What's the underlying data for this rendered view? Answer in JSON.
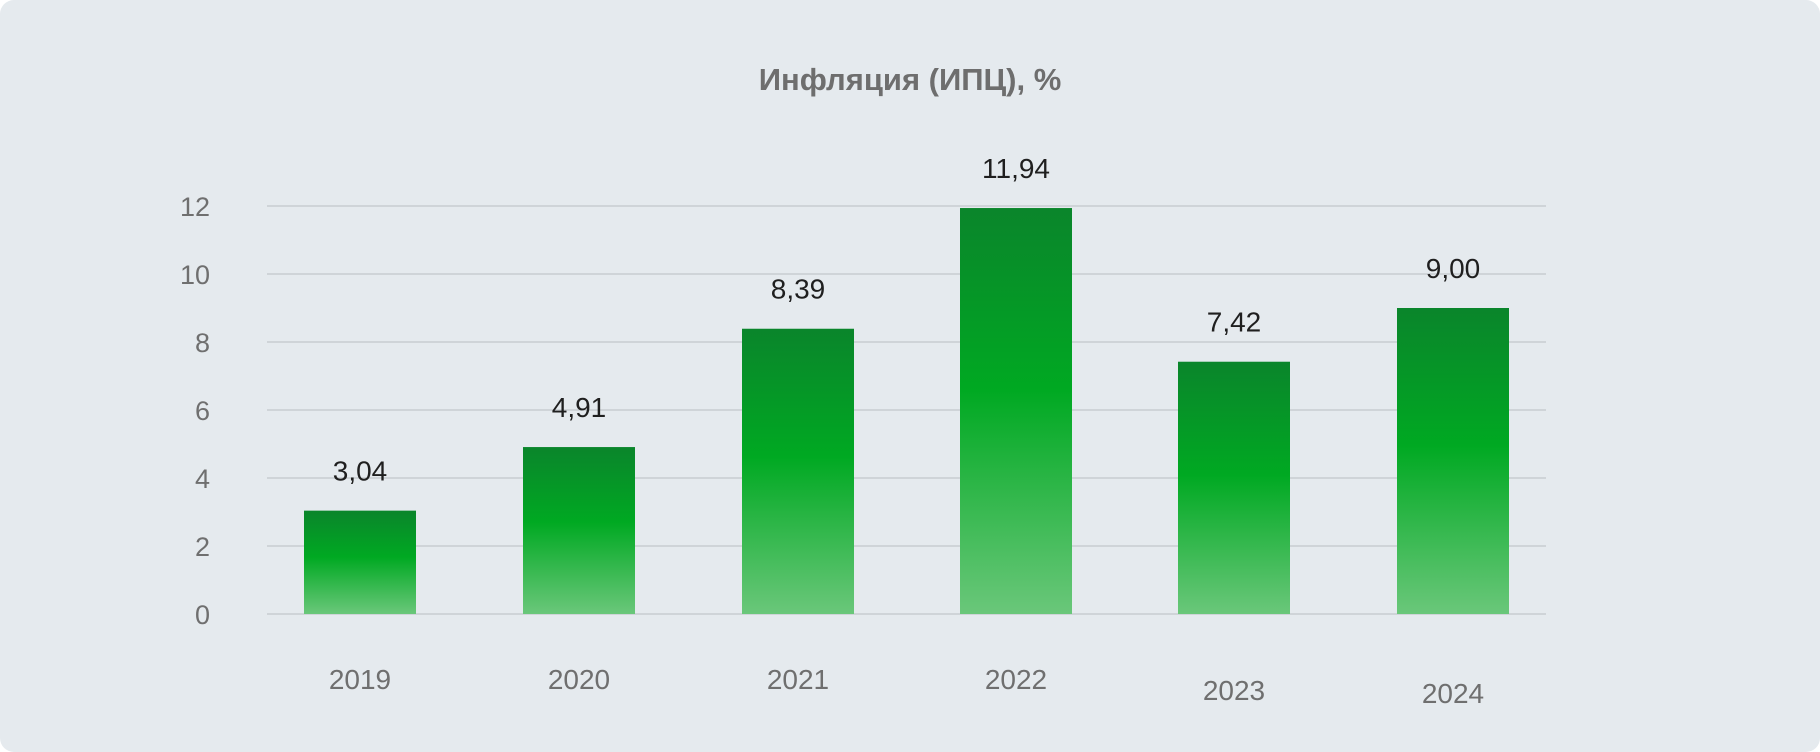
{
  "chart_data": {
    "type": "bar",
    "title": "Инфляция (ИПЦ), %",
    "categories": [
      "2019",
      "2020",
      "2021",
      "2022",
      "2023",
      "2024"
    ],
    "values": [
      3.04,
      4.91,
      8.39,
      11.94,
      7.42,
      9.0
    ],
    "value_labels": [
      "3,04",
      "4,91",
      "8,39",
      "11,94",
      "7,42",
      "9,00"
    ],
    "yticks": [
      "0",
      "2",
      "4",
      "6",
      "8",
      "10",
      "12"
    ],
    "ylim": [
      0,
      12
    ],
    "grid": true,
    "legend": "none"
  },
  "colors": {
    "background": "#e5eaee",
    "bar_top": "#0a852b",
    "bar_mid": "#00a922",
    "bar_bottom": "#6ac77a",
    "grid": "#c8ccd0"
  }
}
